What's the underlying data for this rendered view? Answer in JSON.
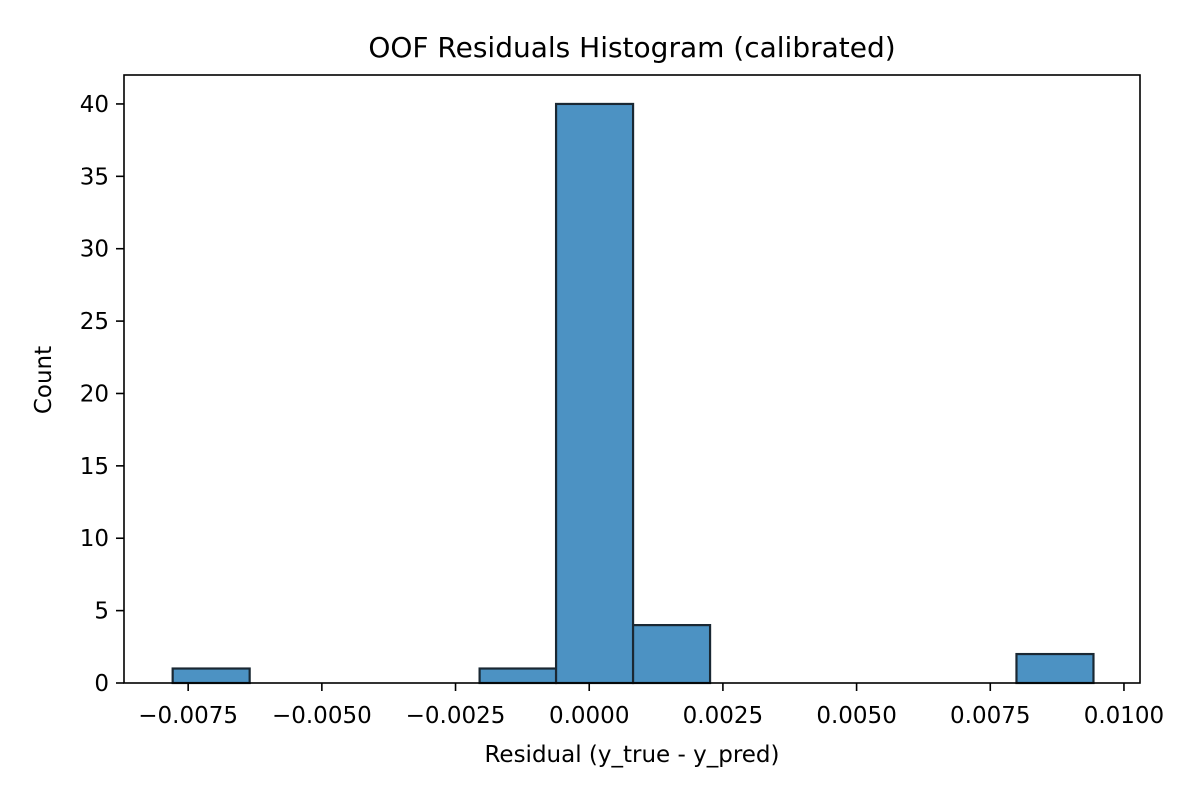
{
  "chart_data": {
    "type": "bar",
    "title": "OOF Residuals Histogram (calibrated)",
    "xlabel": "Residual (y_true - y_pred)",
    "ylabel": "Count",
    "xlim": [
      -0.0087,
      0.0103
    ],
    "ylim": [
      0,
      42
    ],
    "xticks": [
      -0.0075,
      -0.005,
      -0.0025,
      0.0,
      0.0025,
      0.005,
      0.0075,
      0.01
    ],
    "xtick_labels": [
      "−0.0075",
      "−0.0050",
      "−0.0025",
      "0.0000",
      "0.0025",
      "0.0050",
      "0.0075",
      "0.0100"
    ],
    "yticks": [
      0,
      5,
      10,
      15,
      20,
      25,
      30,
      35,
      40
    ],
    "ytick_labels": [
      "0",
      "5",
      "10",
      "15",
      "20",
      "25",
      "30",
      "35",
      "40"
    ],
    "bin_edges": [
      -0.00779,
      -0.00635,
      -0.00492,
      -0.00349,
      -0.00205,
      -0.00062,
      0.00082,
      0.00226,
      0.00369,
      0.00513,
      0.00656,
      0.00799,
      0.00943
    ],
    "counts": [
      1,
      0,
      0,
      0,
      1,
      40,
      4,
      0,
      0,
      0,
      0,
      2
    ],
    "grid": false,
    "bar_color": "#4c92c3",
    "edge_color": "#1a2833"
  }
}
